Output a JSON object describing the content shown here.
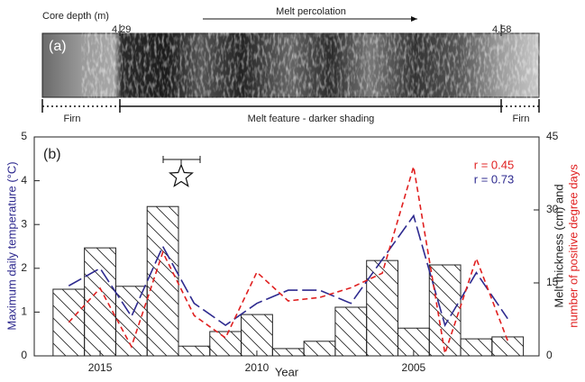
{
  "core_panel": {
    "depth_label": "Core depth (m)",
    "depth_start": 4.29,
    "depth_end": 4.58,
    "arrow_label": "Melt percolation",
    "panel_label": "(a)",
    "left_zone": "Firn",
    "middle_zone": "Melt feature - darker shading",
    "right_zone": "Firn"
  },
  "chart_data": {
    "type": "bar",
    "xlabel": "Year",
    "ylabel": "Maximum daily temperature (°C)",
    "y2label": [
      "Melt thickness (cm) and",
      "number of positive degree days"
    ],
    "annotations": [
      "(b)",
      "r = 0.45",
      "r = 0.73"
    ],
    "x": [
      2016,
      2015,
      2014,
      2013,
      2012,
      2011,
      2010,
      2009,
      2008,
      2007,
      2006,
      2005,
      2004,
      2003,
      2002
    ],
    "series": [
      {
        "type": "bar",
        "axis": "y2",
        "color": "#222222",
        "values": [
          13.7,
          22.2,
          14.3,
          30.7,
          2.0,
          5.0,
          8.5,
          1.5,
          3.0,
          10.0,
          19.6,
          5.7,
          18.7,
          3.5,
          3.9
        ]
      },
      {
        "type": "line",
        "color": "#2e2a8f",
        "values": [
          1.6,
          2.0,
          0.9,
          2.5,
          1.2,
          0.7,
          1.2,
          1.5,
          1.5,
          1.2,
          2.2,
          3.2,
          0.7,
          1.9,
          0.85
        ]
      },
      {
        "type": "line",
        "axis": "y2",
        "color": "#e02020",
        "values": [
          6.9,
          13.9,
          1.9,
          21.3,
          8.3,
          3.7,
          17.2,
          11.3,
          12.0,
          14.0,
          17.0,
          38.9,
          0.5,
          20.0,
          3.1
        ]
      }
    ],
    "xlim": [
      2017.1,
      2001
    ],
    "xticks": [
      2015,
      2010,
      2005
    ],
    "ylim": [
      0,
      5
    ],
    "yticks": [
      0,
      1,
      2,
      3,
      4,
      5
    ],
    "y2lim": [
      0,
      45
    ],
    "y2ticks": [
      0,
      15,
      30,
      45
    ]
  }
}
